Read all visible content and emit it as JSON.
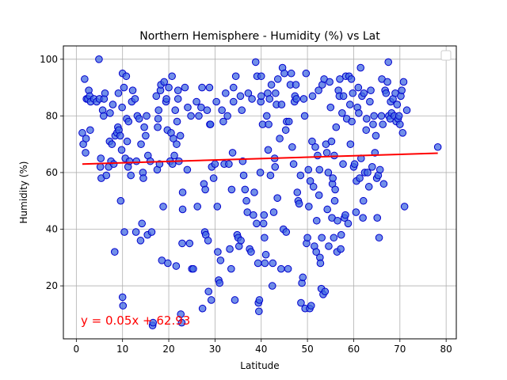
{
  "chart_data": {
    "type": "scatter",
    "title": "Northern Hemisphere - Humidity (%) vs Lat",
    "xlabel": "Latitude",
    "ylabel": "Humidity (%)",
    "xlim": [
      -2.8,
      82.2
    ],
    "ylim": [
      1.3,
      104.7
    ],
    "xticks": [
      0,
      10,
      20,
      30,
      40,
      50,
      60,
      70,
      80
    ],
    "yticks": [
      20,
      40,
      60,
      80,
      100
    ],
    "grid": true,
    "legend": "top-right (empty)",
    "annotation": "y = 0.05x + 62.93",
    "regression": {
      "slope": 0.05,
      "intercept": 62.93,
      "x_range": [
        1.3,
        78.2
      ]
    },
    "colors": {
      "marker_fill": "#4169e1",
      "marker_edge": "#0000cd",
      "line": "#ff0000",
      "annotation": "#ff0000",
      "grid": "#b0b0b0"
    },
    "points": [
      [
        1.3,
        74
      ],
      [
        1.5,
        70
      ],
      [
        1.8,
        93
      ],
      [
        2,
        67
      ],
      [
        2.1,
        72
      ],
      [
        2.2,
        86
      ],
      [
        2.5,
        86
      ],
      [
        2.7,
        89
      ],
      [
        2.9,
        87
      ],
      [
        3,
        75
      ],
      [
        3.1,
        85
      ],
      [
        3.8,
        86
      ],
      [
        4.4,
        85
      ],
      [
        4.9,
        100
      ],
      [
        5,
        86
      ],
      [
        5.2,
        62
      ],
      [
        5.3,
        65
      ],
      [
        5.4,
        58
      ],
      [
        5.7,
        82
      ],
      [
        5.9,
        80
      ],
      [
        6,
        86
      ],
      [
        6.2,
        88
      ],
      [
        6.5,
        59
      ],
      [
        7,
        62
      ],
      [
        7.2,
        71
      ],
      [
        7.3,
        81
      ],
      [
        7.5,
        64
      ],
      [
        7.7,
        70
      ],
      [
        7.9,
        84
      ],
      [
        8.1,
        63
      ],
      [
        8.3,
        32
      ],
      [
        8.4,
        73
      ],
      [
        8.8,
        74
      ],
      [
        9,
        76
      ],
      [
        9.1,
        88
      ],
      [
        9.2,
        75
      ],
      [
        9.5,
        73
      ],
      [
        9.6,
        50
      ],
      [
        9.8,
        68
      ],
      [
        9.9,
        83
      ],
      [
        10,
        95
      ],
      [
        10,
        16
      ],
      [
        10.1,
        13
      ],
      [
        10.3,
        90
      ],
      [
        10.4,
        39
      ],
      [
        10.6,
        65
      ],
      [
        10.8,
        94
      ],
      [
        10.9,
        79
      ],
      [
        11,
        71
      ],
      [
        11.2,
        62
      ],
      [
        11.3,
        78
      ],
      [
        11.5,
        64
      ],
      [
        11.8,
        59
      ],
      [
        12,
        85
      ],
      [
        12.2,
        89
      ],
      [
        12.7,
        86
      ],
      [
        12.9,
        39
      ],
      [
        13,
        64
      ],
      [
        13.2,
        80
      ],
      [
        13.6,
        79
      ],
      [
        13.9,
        36
      ],
      [
        14,
        70
      ],
      [
        14.2,
        42
      ],
      [
        14.4,
        60
      ],
      [
        14.5,
        58
      ],
      [
        14.7,
        76
      ],
      [
        15,
        73
      ],
      [
        15.2,
        80
      ],
      [
        15.4,
        38
      ],
      [
        15.5,
        66
      ],
      [
        16,
        64
      ],
      [
        16.3,
        39
      ],
      [
        16.5,
        6
      ],
      [
        16.6,
        7
      ],
      [
        17.3,
        87
      ],
      [
        17.5,
        61
      ],
      [
        17.6,
        76
      ],
      [
        17.7,
        79
      ],
      [
        17.8,
        82
      ],
      [
        18,
        63
      ],
      [
        18.2,
        89
      ],
      [
        18.3,
        91
      ],
      [
        18.5,
        29
      ],
      [
        18.8,
        48
      ],
      [
        19,
        92
      ],
      [
        19.4,
        85
      ],
      [
        19.5,
        86
      ],
      [
        19.7,
        75
      ],
      [
        19.8,
        28
      ],
      [
        20,
        90
      ],
      [
        20.3,
        64
      ],
      [
        20.5,
        74
      ],
      [
        20.7,
        94
      ],
      [
        20.8,
        63
      ],
      [
        21,
        72
      ],
      [
        21.2,
        66
      ],
      [
        21.4,
        82
      ],
      [
        21.6,
        27
      ],
      [
        21.7,
        70
      ],
      [
        21.8,
        78
      ],
      [
        22,
        86
      ],
      [
        22,
        89
      ],
      [
        22.2,
        64
      ],
      [
        22.5,
        73
      ],
      [
        22.6,
        10
      ],
      [
        22.8,
        7
      ],
      [
        22.9,
        35
      ],
      [
        23,
        47
      ],
      [
        23,
        53
      ],
      [
        23.5,
        90
      ],
      [
        24,
        61
      ],
      [
        24.1,
        83
      ],
      [
        24.5,
        35
      ],
      [
        24.8,
        80
      ],
      [
        25,
        26
      ],
      [
        25.3,
        26
      ],
      [
        26,
        85
      ],
      [
        26.2,
        48
      ],
      [
        26.5,
        80
      ],
      [
        27,
        83
      ],
      [
        27.2,
        90
      ],
      [
        27.3,
        12
      ],
      [
        27.6,
        56
      ],
      [
        27.8,
        39
      ],
      [
        27.9,
        54
      ],
      [
        28,
        38
      ],
      [
        28.3,
        82
      ],
      [
        28.5,
        36
      ],
      [
        28.6,
        18
      ],
      [
        28.8,
        90
      ],
      [
        28.9,
        77
      ],
      [
        29,
        77
      ],
      [
        29.2,
        15
      ],
      [
        29.3,
        62
      ],
      [
        29.7,
        58
      ],
      [
        30,
        63
      ],
      [
        30.3,
        85
      ],
      [
        30.5,
        48
      ],
      [
        30.6,
        32
      ],
      [
        30.8,
        22
      ],
      [
        31,
        21
      ],
      [
        31.2,
        29
      ],
      [
        31.5,
        82
      ],
      [
        31.8,
        78
      ],
      [
        32,
        63
      ],
      [
        32.3,
        88
      ],
      [
        32.7,
        80
      ],
      [
        33,
        63
      ],
      [
        33.2,
        33
      ],
      [
        33.5,
        26
      ],
      [
        33.6,
        54
      ],
      [
        33.8,
        67
      ],
      [
        34,
        85
      ],
      [
        34,
        90
      ],
      [
        34.3,
        15
      ],
      [
        34.5,
        94
      ],
      [
        34.8,
        38
      ],
      [
        35,
        37
      ],
      [
        35.2,
        34
      ],
      [
        35.5,
        87
      ],
      [
        35.6,
        36
      ],
      [
        35.8,
        82
      ],
      [
        36,
        64
      ],
      [
        36.2,
        59
      ],
      [
        36.5,
        54
      ],
      [
        36.8,
        50
      ],
      [
        37,
        46
      ],
      [
        37.2,
        88
      ],
      [
        37.5,
        33
      ],
      [
        37.8,
        32
      ],
      [
        38,
        86
      ],
      [
        38.3,
        45
      ],
      [
        38.5,
        53
      ],
      [
        38.8,
        99
      ],
      [
        39,
        42
      ],
      [
        39.1,
        94
      ],
      [
        39.3,
        28
      ],
      [
        39.4,
        14
      ],
      [
        39.5,
        11
      ],
      [
        39.6,
        15
      ],
      [
        39.8,
        60
      ],
      [
        39.9,
        85
      ],
      [
        40,
        87
      ],
      [
        40,
        94
      ],
      [
        40.3,
        77
      ],
      [
        40.5,
        42
      ],
      [
        40.6,
        45
      ],
      [
        40.7,
        37
      ],
      [
        40.8,
        28
      ],
      [
        41,
        31
      ],
      [
        41.2,
        80
      ],
      [
        41.4,
        88
      ],
      [
        41.5,
        68
      ],
      [
        41.6,
        77
      ],
      [
        41.8,
        86
      ],
      [
        42,
        59
      ],
      [
        42.2,
        91
      ],
      [
        42.4,
        20
      ],
      [
        42.5,
        28
      ],
      [
        42.7,
        46
      ],
      [
        42.9,
        65
      ],
      [
        43,
        62
      ],
      [
        43.1,
        88
      ],
      [
        43.3,
        84
      ],
      [
        43.5,
        51
      ],
      [
        43.6,
        93
      ],
      [
        44,
        72
      ],
      [
        44.3,
        26
      ],
      [
        44.4,
        84
      ],
      [
        44.6,
        97
      ],
      [
        44.8,
        40
      ],
      [
        45,
        95
      ],
      [
        45.3,
        75
      ],
      [
        45.4,
        39
      ],
      [
        45.5,
        78
      ],
      [
        45.8,
        26
      ],
      [
        46,
        78
      ],
      [
        46.3,
        91
      ],
      [
        46.5,
        95
      ],
      [
        46.7,
        69
      ],
      [
        47,
        63
      ],
      [
        47.2,
        85
      ],
      [
        47.3,
        87
      ],
      [
        47.5,
        91
      ],
      [
        47.6,
        86
      ],
      [
        47.8,
        53
      ],
      [
        48,
        50
      ],
      [
        48.2,
        49
      ],
      [
        48.5,
        59
      ],
      [
        48.6,
        14
      ],
      [
        48.8,
        21
      ],
      [
        49,
        23
      ],
      [
        49.2,
        86
      ],
      [
        49.4,
        80
      ],
      [
        49.5,
        12
      ],
      [
        49.7,
        95
      ],
      [
        49.8,
        35
      ],
      [
        50,
        37
      ],
      [
        50.2,
        61
      ],
      [
        50.3,
        48
      ],
      [
        50.5,
        12
      ],
      [
        50.6,
        57
      ],
      [
        50.8,
        13
      ],
      [
        51,
        71
      ],
      [
        51.1,
        87
      ],
      [
        51.3,
        55
      ],
      [
        51.5,
        34
      ],
      [
        51.7,
        69
      ],
      [
        51.9,
        32
      ],
      [
        52,
        43
      ],
      [
        52.2,
        66
      ],
      [
        52.4,
        89
      ],
      [
        52.5,
        52
      ],
      [
        52.6,
        61
      ],
      [
        52.7,
        30
      ],
      [
        52.8,
        28
      ],
      [
        53,
        19
      ],
      [
        53.1,
        37
      ],
      [
        53.2,
        91
      ],
      [
        53.4,
        17
      ],
      [
        53.6,
        93
      ],
      [
        53.8,
        18
      ],
      [
        54,
        70
      ],
      [
        54.2,
        67
      ],
      [
        54.3,
        47
      ],
      [
        54.5,
        60
      ],
      [
        54.6,
        34
      ],
      [
        54.8,
        92
      ],
      [
        55,
        83
      ],
      [
        55.2,
        71
      ],
      [
        55.3,
        44
      ],
      [
        55.4,
        56
      ],
      [
        55.5,
        58
      ],
      [
        55.7,
        37
      ],
      [
        55.8,
        66
      ],
      [
        55.9,
        50
      ],
      [
        56,
        54
      ],
      [
        56.2,
        76
      ],
      [
        56.4,
        32
      ],
      [
        56.5,
        43
      ],
      [
        56.7,
        89
      ],
      [
        56.9,
        87
      ],
      [
        57,
        93
      ],
      [
        57.2,
        33
      ],
      [
        57.3,
        38
      ],
      [
        57.5,
        81
      ],
      [
        57.7,
        63
      ],
      [
        57.8,
        87
      ],
      [
        58,
        44
      ],
      [
        58.2,
        45
      ],
      [
        58.3,
        94
      ],
      [
        58.5,
        79
      ],
      [
        58.8,
        42
      ],
      [
        59,
        94
      ],
      [
        59.2,
        84
      ],
      [
        59.3,
        70
      ],
      [
        59.5,
        93
      ],
      [
        59.6,
        78
      ],
      [
        59.8,
        88
      ],
      [
        60,
        62
      ],
      [
        60.2,
        63
      ],
      [
        60.5,
        46
      ],
      [
        60.6,
        57
      ],
      [
        60.8,
        83
      ],
      [
        61,
        90
      ],
      [
        61.1,
        81
      ],
      [
        61.3,
        58
      ],
      [
        61.5,
        97
      ],
      [
        61.6,
        65
      ],
      [
        61.8,
        87
      ],
      [
        62,
        44
      ],
      [
        62.1,
        50
      ],
      [
        62.2,
        88
      ],
      [
        62.4,
        60
      ],
      [
        62.7,
        75
      ],
      [
        62.8,
        79
      ],
      [
        63,
        60
      ],
      [
        63.3,
        55
      ],
      [
        63.5,
        85
      ],
      [
        63.7,
        89
      ],
      [
        64,
        62
      ],
      [
        64.2,
        77
      ],
      [
        64.4,
        80
      ],
      [
        64.6,
        67
      ],
      [
        64.8,
        73
      ],
      [
        65,
        58
      ],
      [
        65.1,
        44
      ],
      [
        65.3,
        59
      ],
      [
        65.5,
        37
      ],
      [
        65.7,
        61
      ],
      [
        66,
        80
      ],
      [
        66.1,
        93
      ],
      [
        66.3,
        77
      ],
      [
        66.5,
        56
      ],
      [
        66.8,
        89
      ],
      [
        67,
        88
      ],
      [
        67.3,
        92
      ],
      [
        67.5,
        99
      ],
      [
        67.6,
        80
      ],
      [
        67.9,
        79
      ],
      [
        68,
        85
      ],
      [
        68.2,
        81
      ],
      [
        68.5,
        86
      ],
      [
        68.8,
        80
      ],
      [
        69,
        88
      ],
      [
        69.2,
        78
      ],
      [
        69.4,
        84
      ],
      [
        69.6,
        79
      ],
      [
        69.8,
        80
      ],
      [
        70,
        77
      ],
      [
        70.2,
        87
      ],
      [
        70.4,
        89
      ],
      [
        70.6,
        74
      ],
      [
        70.8,
        92
      ],
      [
        71,
        48
      ],
      [
        71.5,
        82
      ],
      [
        78.2,
        69
      ]
    ]
  }
}
